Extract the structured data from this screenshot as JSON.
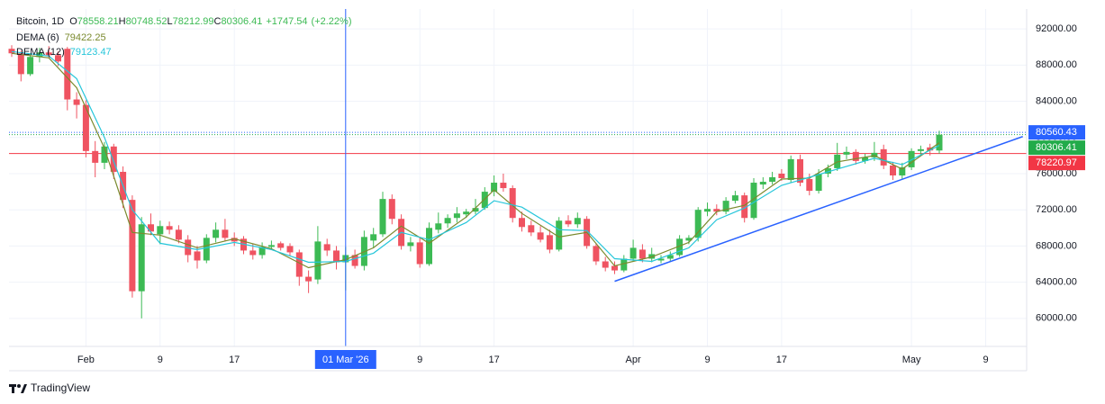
{
  "chart_data": {
    "type": "candlestick",
    "title": "Bitcoin, 1D",
    "ohlc_labels": [
      "O",
      "H",
      "L",
      "C"
    ],
    "change": "+1747.54",
    "change_percent": "(+2.22%)",
    "footer": "TradingView",
    "up_color": "#3cba54",
    "down_color": "#ef5361",
    "x": [
      "2026-01-24",
      "2026-01-25",
      "2026-01-26",
      "2026-01-27",
      "2026-01-28",
      "2026-01-29",
      "2026-01-30",
      "2026-01-31",
      "2026-02-01",
      "2026-02-02",
      "2026-02-03",
      "2026-02-04",
      "2026-02-05",
      "2026-02-06",
      "2026-02-07",
      "2026-02-08",
      "2026-02-09",
      "2026-02-10",
      "2026-02-11",
      "2026-02-12",
      "2026-02-13",
      "2026-02-14",
      "2026-02-15",
      "2026-02-16",
      "2026-02-17",
      "2026-02-18",
      "2026-02-19",
      "2026-02-20",
      "2026-02-21",
      "2026-02-22",
      "2026-02-23",
      "2026-02-24",
      "2026-02-25",
      "2026-02-26",
      "2026-02-27",
      "2026-02-28",
      "2026-03-01",
      "2026-03-02",
      "2026-03-03",
      "2026-03-04",
      "2026-03-05",
      "2026-03-06",
      "2026-03-07",
      "2026-03-08",
      "2026-03-09",
      "2026-03-10",
      "2026-03-11",
      "2026-03-12",
      "2026-03-13",
      "2026-03-14",
      "2026-03-15",
      "2026-03-16",
      "2026-03-17",
      "2026-03-18",
      "2026-03-19",
      "2026-03-20",
      "2026-03-21",
      "2026-03-22",
      "2026-03-23",
      "2026-03-24",
      "2026-03-25",
      "2026-03-26",
      "2026-03-27",
      "2026-03-28",
      "2026-03-29",
      "2026-03-30",
      "2026-03-31",
      "2026-04-01",
      "2026-04-02",
      "2026-04-03",
      "2026-04-04",
      "2026-04-05",
      "2026-04-06",
      "2026-04-07",
      "2026-04-08",
      "2026-04-09",
      "2026-04-10",
      "2026-04-11",
      "2026-04-12",
      "2026-04-13",
      "2026-04-14",
      "2026-04-15",
      "2026-04-16",
      "2026-04-17",
      "2026-04-18",
      "2026-04-19",
      "2026-04-20",
      "2026-04-21",
      "2026-04-22",
      "2026-04-23",
      "2026-04-24",
      "2026-04-25",
      "2026-04-26",
      "2026-04-27",
      "2026-04-28",
      "2026-04-29",
      "2026-04-30",
      "2026-05-01",
      "2026-05-02",
      "2026-05-03",
      "2026-05-04"
    ],
    "open": [
      89800,
      89300,
      87000,
      88900,
      89400,
      89100,
      89800,
      84200,
      83600,
      78500,
      77200,
      79000,
      76200,
      73100,
      63000,
      70400,
      69300,
      70200,
      69800,
      68700,
      67400,
      66400,
      68900,
      69800,
      68900,
      68800,
      67500,
      67000,
      67900,
      68300,
      68000,
      67300,
      64600,
      64300,
      68200,
      67500,
      66200,
      67000,
      65800,
      68600,
      69300,
      73200,
      71000,
      68000,
      68400,
      66000,
      69800,
      70500,
      71100,
      71500,
      71800,
      72200,
      74000,
      75000,
      74400,
      71100,
      70300,
      69500,
      69200,
      67600,
      70800,
      70400,
      71000,
      68000,
      66300,
      65800,
      65300,
      66600,
      67600,
      66600,
      66400,
      66600,
      67000,
      68600,
      68900,
      71800,
      72100,
      71800,
      73000,
      73600,
      71100,
      74800,
      75100,
      76000,
      75300,
      77600,
      75400,
      74100,
      76000,
      76600,
      78100,
      78400,
      77400,
      77800,
      78700,
      76900,
      75800,
      76700,
      78500,
      78900,
      78558.21
    ],
    "high": [
      90200,
      89600,
      89300,
      89900,
      90100,
      89500,
      90000,
      85000,
      84100,
      79600,
      79500,
      79300,
      76800,
      73600,
      71200,
      71600,
      70800,
      70700,
      70300,
      69200,
      68000,
      69300,
      70600,
      71000,
      69500,
      69100,
      68200,
      68400,
      68600,
      68500,
      68300,
      67600,
      65300,
      70200,
      68800,
      68000,
      67900,
      67600,
      69700,
      70000,
      74000,
      73700,
      71500,
      69000,
      68900,
      70600,
      71700,
      71500,
      72300,
      72100,
      73200,
      74500,
      75800,
      76000,
      74700,
      71800,
      70800,
      70200,
      69800,
      71200,
      71400,
      71700,
      71300,
      68300,
      66800,
      66300,
      67000,
      68700,
      68200,
      67800,
      67000,
      67400,
      69200,
      69200,
      72300,
      72800,
      72600,
      73400,
      74100,
      73900,
      75500,
      75600,
      76200,
      76500,
      78000,
      78100,
      76000,
      76500,
      77000,
      79400,
      79000,
      78700,
      78200,
      79500,
      79200,
      77300,
      77200,
      78800,
      79100,
      79300,
      80748.52
    ],
    "low": [
      88900,
      86200,
      86800,
      88300,
      88800,
      87900,
      83000,
      82100,
      77800,
      75600,
      76500,
      75400,
      72200,
      62300,
      60000,
      69200,
      68200,
      69300,
      68300,
      66200,
      65500,
      66100,
      68400,
      68500,
      68000,
      67100,
      66500,
      66600,
      67600,
      67500,
      66900,
      63600,
      62800,
      63800,
      66900,
      65400,
      63100,
      65500,
      65300,
      67800,
      69000,
      70400,
      67600,
      67400,
      65600,
      65800,
      69400,
      70000,
      70600,
      71100,
      71500,
      72000,
      73500,
      74000,
      70600,
      69600,
      69100,
      68400,
      67200,
      67400,
      70100,
      70000,
      67700,
      65900,
      65200,
      64900,
      65100,
      66300,
      66200,
      66200,
      66100,
      66300,
      66800,
      68200,
      68500,
      71300,
      71400,
      71500,
      72700,
      70600,
      70900,
      74300,
      74800,
      75200,
      75000,
      74600,
      73600,
      73800,
      75600,
      76300,
      77600,
      77000,
      77100,
      77400,
      76500,
      75300,
      75400,
      76400,
      78000,
      78000,
      78212.99
    ],
    "close": [
      89300,
      87000,
      88900,
      89400,
      89100,
      88400,
      84200,
      83600,
      78500,
      77200,
      79000,
      76200,
      73100,
      63000,
      70400,
      69600,
      70200,
      69800,
      68700,
      67000,
      66400,
      68900,
      69800,
      68900,
      68500,
      67500,
      67000,
      67900,
      68100,
      67800,
      67300,
      64600,
      64100,
      68500,
      67500,
      66200,
      67000,
      65800,
      69000,
      69300,
      73200,
      71000,
      68000,
      68400,
      66000,
      70000,
      70500,
      71100,
      71600,
      71800,
      72200,
      74000,
      75000,
      74400,
      71100,
      70100,
      69500,
      68700,
      67600,
      70800,
      70400,
      71100,
      68000,
      66300,
      65600,
      65300,
      66600,
      67800,
      66600,
      67100,
      66600,
      67000,
      68800,
      68900,
      72000,
      72100,
      71800,
      73000,
      73600,
      71100,
      75000,
      75100,
      75600,
      75500,
      77600,
      75000,
      74100,
      76000,
      76600,
      78100,
      78400,
      77400,
      77800,
      78300,
      76900,
      75800,
      76700,
      78500,
      78700,
      78558.87,
      80306.41
    ],
    "series": [
      {
        "name": "DEMA (6)",
        "color": "#7a8a2e",
        "x": [
          "2026-01-24",
          "2026-01-28",
          "2026-01-31",
          "2026-02-03",
          "2026-02-06",
          "2026-02-09",
          "2026-02-13",
          "2026-02-17",
          "2026-02-21",
          "2026-02-25",
          "2026-03-01",
          "2026-03-04",
          "2026-03-07",
          "2026-03-10",
          "2026-03-14",
          "2026-03-17",
          "2026-03-20",
          "2026-03-24",
          "2026-03-27",
          "2026-03-30",
          "2026-04-03",
          "2026-04-07",
          "2026-04-10",
          "2026-04-13",
          "2026-04-17",
          "2026-04-20",
          "2026-04-23",
          "2026-04-27",
          "2026-04-30",
          "2026-05-04"
        ],
        "values": [
          89300,
          88800,
          85500,
          78800,
          69500,
          69200,
          67800,
          68800,
          67700,
          65600,
          66500,
          67800,
          70200,
          68300,
          71200,
          74200,
          71600,
          69000,
          69500,
          65800,
          66800,
          68400,
          71800,
          72500,
          75400,
          75500,
          77300,
          78000,
          76500,
          79422.25
        ]
      },
      {
        "name": "DEMA (12)",
        "color": "#26c6da",
        "x": [
          "2026-01-24",
          "2026-01-28",
          "2026-01-31",
          "2026-02-03",
          "2026-02-06",
          "2026-02-09",
          "2026-02-13",
          "2026-02-17",
          "2026-02-21",
          "2026-02-25",
          "2026-03-01",
          "2026-03-04",
          "2026-03-07",
          "2026-03-10",
          "2026-03-14",
          "2026-03-17",
          "2026-03-20",
          "2026-03-24",
          "2026-03-27",
          "2026-03-30",
          "2026-04-03",
          "2026-04-07",
          "2026-04-10",
          "2026-04-13",
          "2026-04-17",
          "2026-04-20",
          "2026-04-23",
          "2026-04-27",
          "2026-04-30",
          "2026-05-04"
        ],
        "values": [
          89500,
          89000,
          86500,
          80000,
          72000,
          68300,
          67600,
          68400,
          67600,
          66200,
          66300,
          67200,
          69500,
          68700,
          70600,
          73000,
          72300,
          69800,
          69700,
          66600,
          66300,
          67800,
          70900,
          72200,
          74700,
          75600,
          76500,
          77700,
          77000,
          79123.47
        ]
      }
    ],
    "price_lines": [
      {
        "value": 80560.43,
        "color": "#2962ff",
        "style": "dotted"
      },
      {
        "value": 80306.41,
        "color": "#22ab4a",
        "style": "dotted"
      },
      {
        "value": 78220.97,
        "color": "#f23645",
        "style": "solid"
      }
    ],
    "trendline": {
      "x": [
        "2026-03-30",
        "2026-05-13"
      ],
      "values": [
        64100,
        80100
      ],
      "color": "#2962ff"
    },
    "crosshair": {
      "x": "2026-03-01",
      "label": "01 Mar '26",
      "color": "#2962ff"
    },
    "ylim": [
      56900,
      94200
    ],
    "yticks": [
      {
        "value": 60000,
        "label": "60000.00"
      },
      {
        "value": 64000,
        "label": "64000.00"
      },
      {
        "value": 68000,
        "label": "68000.00"
      },
      {
        "value": 72000,
        "label": "72000.00"
      },
      {
        "value": 76000,
        "label": "76000.00"
      },
      {
        "value": 80000,
        "label": "80000.00"
      },
      {
        "value": 84000,
        "label": "84000.00"
      },
      {
        "value": 88000,
        "label": "88000.00"
      },
      {
        "value": 92000,
        "label": "92000.00"
      }
    ],
    "xticks": [
      {
        "value": "2026-02-01",
        "label": "Feb"
      },
      {
        "value": "2026-02-09",
        "label": "9"
      },
      {
        "value": "2026-02-17",
        "label": "17"
      },
      {
        "value": "2026-03-09",
        "label": "9"
      },
      {
        "value": "2026-03-17",
        "label": "17"
      },
      {
        "value": "2026-04-01",
        "label": "Apr"
      },
      {
        "value": "2026-04-09",
        "label": "9"
      },
      {
        "value": "2026-04-17",
        "label": "17"
      },
      {
        "value": "2026-05-01",
        "label": "May"
      },
      {
        "value": "2026-05-09",
        "label": "9"
      }
    ],
    "grid": true
  }
}
